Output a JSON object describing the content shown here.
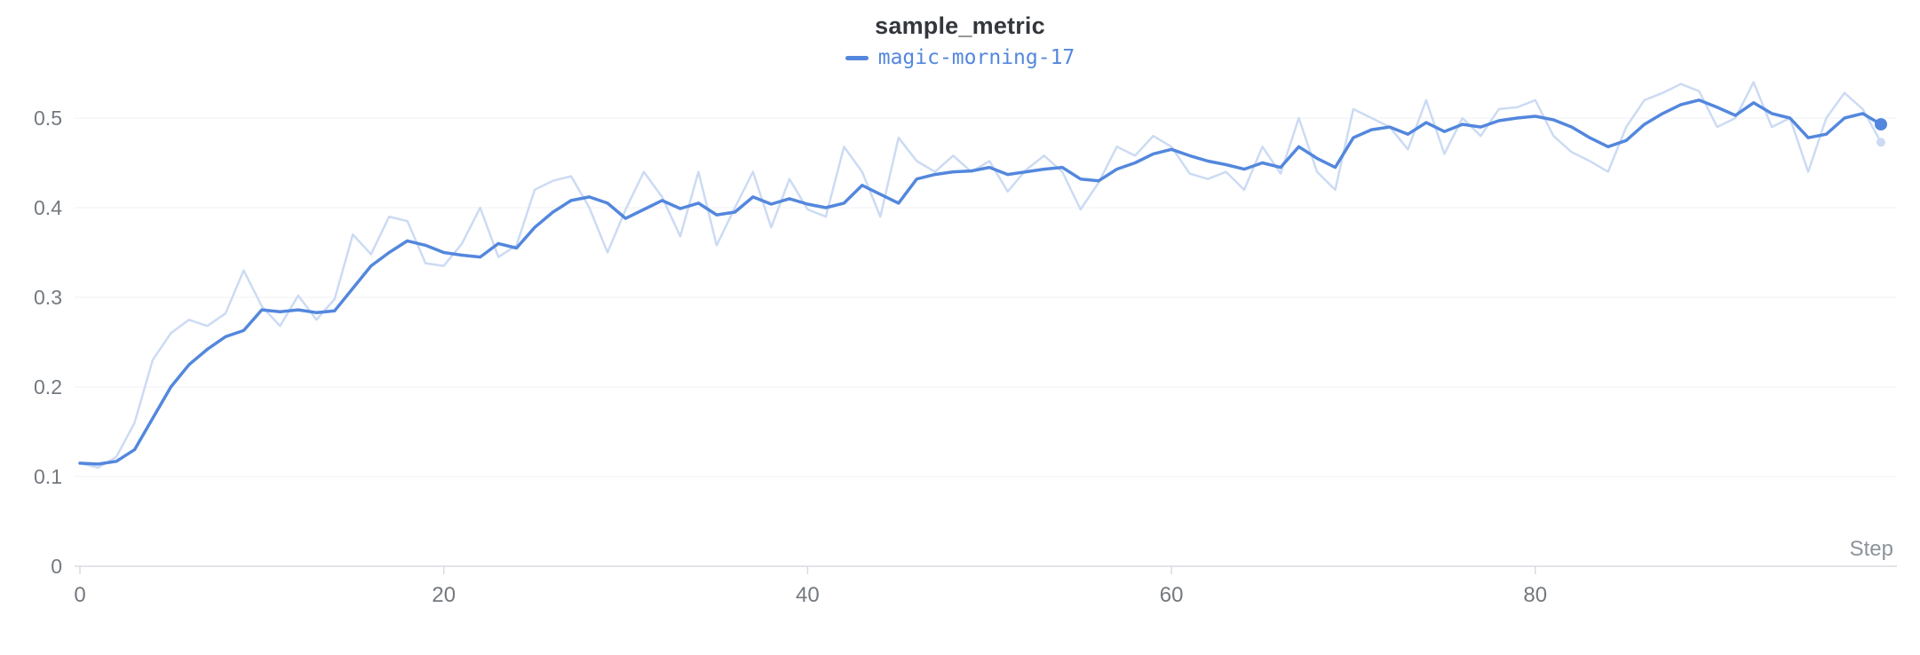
{
  "header": {
    "title": "sample_metric",
    "legend": [
      {
        "label": "magic-morning-17"
      }
    ]
  },
  "chart_data": {
    "type": "line",
    "title": "sample_metric",
    "xlabel": "Step",
    "ylabel": "",
    "xlim": [
      0,
      99
    ],
    "ylim": [
      0,
      0.55
    ],
    "grid": "horizontal-only",
    "legend_position": "top-center",
    "x_ticks": [
      0,
      20,
      40,
      60,
      80
    ],
    "x_tick_labels": [
      "0",
      "20",
      "40",
      "60",
      "80"
    ],
    "y_ticks": [
      0,
      0.1,
      0.2,
      0.3,
      0.4,
      0.5
    ],
    "y_tick_labels": [
      "0",
      "0.1",
      "0.2",
      "0.3",
      "0.4",
      "0.5"
    ],
    "colors": {
      "accent": "#5387dd",
      "raw": "#ccdbf3",
      "grid": "#f1f1f4",
      "axis": "#d9dbe0",
      "tick_text": "#73797f",
      "axis_label_text": "#8d939a",
      "title_text": "#33373d"
    },
    "x": [
      0,
      1,
      2,
      3,
      4,
      5,
      6,
      7,
      8,
      9,
      10,
      11,
      12,
      13,
      14,
      15,
      16,
      17,
      18,
      19,
      20,
      21,
      22,
      23,
      24,
      25,
      26,
      27,
      28,
      29,
      30,
      31,
      32,
      33,
      34,
      35,
      36,
      37,
      38,
      39,
      40,
      41,
      42,
      43,
      44,
      45,
      46,
      47,
      48,
      49,
      50,
      51,
      52,
      53,
      54,
      55,
      56,
      57,
      58,
      59,
      60,
      61,
      62,
      63,
      64,
      65,
      66,
      67,
      68,
      69,
      70,
      71,
      72,
      73,
      74,
      75,
      76,
      77,
      78,
      79,
      80,
      81,
      82,
      83,
      84,
      85,
      86,
      87,
      88,
      89,
      90,
      91,
      92,
      93,
      94,
      95,
      96,
      97,
      98,
      99
    ],
    "series": [
      {
        "name": "magic-morning-17",
        "role": "raw",
        "color": "#ccdbf3",
        "values": [
          0.115,
          0.11,
          0.122,
          0.16,
          0.23,
          0.26,
          0.275,
          0.268,
          0.282,
          0.33,
          0.29,
          0.268,
          0.302,
          0.275,
          0.298,
          0.37,
          0.348,
          0.39,
          0.385,
          0.338,
          0.335,
          0.36,
          0.4,
          0.345,
          0.358,
          0.42,
          0.43,
          0.435,
          0.4,
          0.35,
          0.398,
          0.44,
          0.412,
          0.368,
          0.44,
          0.358,
          0.4,
          0.44,
          0.378,
          0.432,
          0.398,
          0.39,
          0.468,
          0.44,
          0.39,
          0.478,
          0.452,
          0.44,
          0.458,
          0.44,
          0.452,
          0.418,
          0.442,
          0.458,
          0.44,
          0.398,
          0.428,
          0.468,
          0.458,
          0.48,
          0.468,
          0.438,
          0.432,
          0.44,
          0.42,
          0.468,
          0.438,
          0.5,
          0.44,
          0.42,
          0.51,
          0.5,
          0.49,
          0.465,
          0.52,
          0.46,
          0.5,
          0.48,
          0.51,
          0.512,
          0.52,
          0.48,
          0.462,
          0.452,
          0.44,
          0.49,
          0.52,
          0.528,
          0.538,
          0.53,
          0.49,
          0.5,
          0.54,
          0.49,
          0.5,
          0.44,
          0.5,
          0.528,
          0.51,
          0.473
        ]
      },
      {
        "name": "magic-morning-17",
        "role": "smoothed",
        "color": "#5387dd",
        "values": [
          0.115,
          0.114,
          0.117,
          0.13,
          0.165,
          0.2,
          0.225,
          0.242,
          0.256,
          0.263,
          0.286,
          0.284,
          0.286,
          0.283,
          0.285,
          0.31,
          0.335,
          0.35,
          0.363,
          0.358,
          0.35,
          0.347,
          0.345,
          0.36,
          0.355,
          0.378,
          0.395,
          0.408,
          0.412,
          0.405,
          0.388,
          0.398,
          0.408,
          0.399,
          0.405,
          0.392,
          0.395,
          0.412,
          0.404,
          0.41,
          0.404,
          0.4,
          0.405,
          0.425,
          0.415,
          0.405,
          0.432,
          0.437,
          0.44,
          0.441,
          0.445,
          0.437,
          0.44,
          0.443,
          0.445,
          0.432,
          0.43,
          0.443,
          0.45,
          0.46,
          0.465,
          0.458,
          0.452,
          0.448,
          0.443,
          0.45,
          0.445,
          0.468,
          0.455,
          0.445,
          0.478,
          0.487,
          0.49,
          0.482,
          0.495,
          0.485,
          0.493,
          0.49,
          0.497,
          0.5,
          0.502,
          0.498,
          0.49,
          0.478,
          0.468,
          0.475,
          0.493,
          0.505,
          0.515,
          0.52,
          0.512,
          0.503,
          0.517,
          0.505,
          0.5,
          0.478,
          0.482,
          0.5,
          0.505,
          0.493
        ]
      }
    ]
  }
}
